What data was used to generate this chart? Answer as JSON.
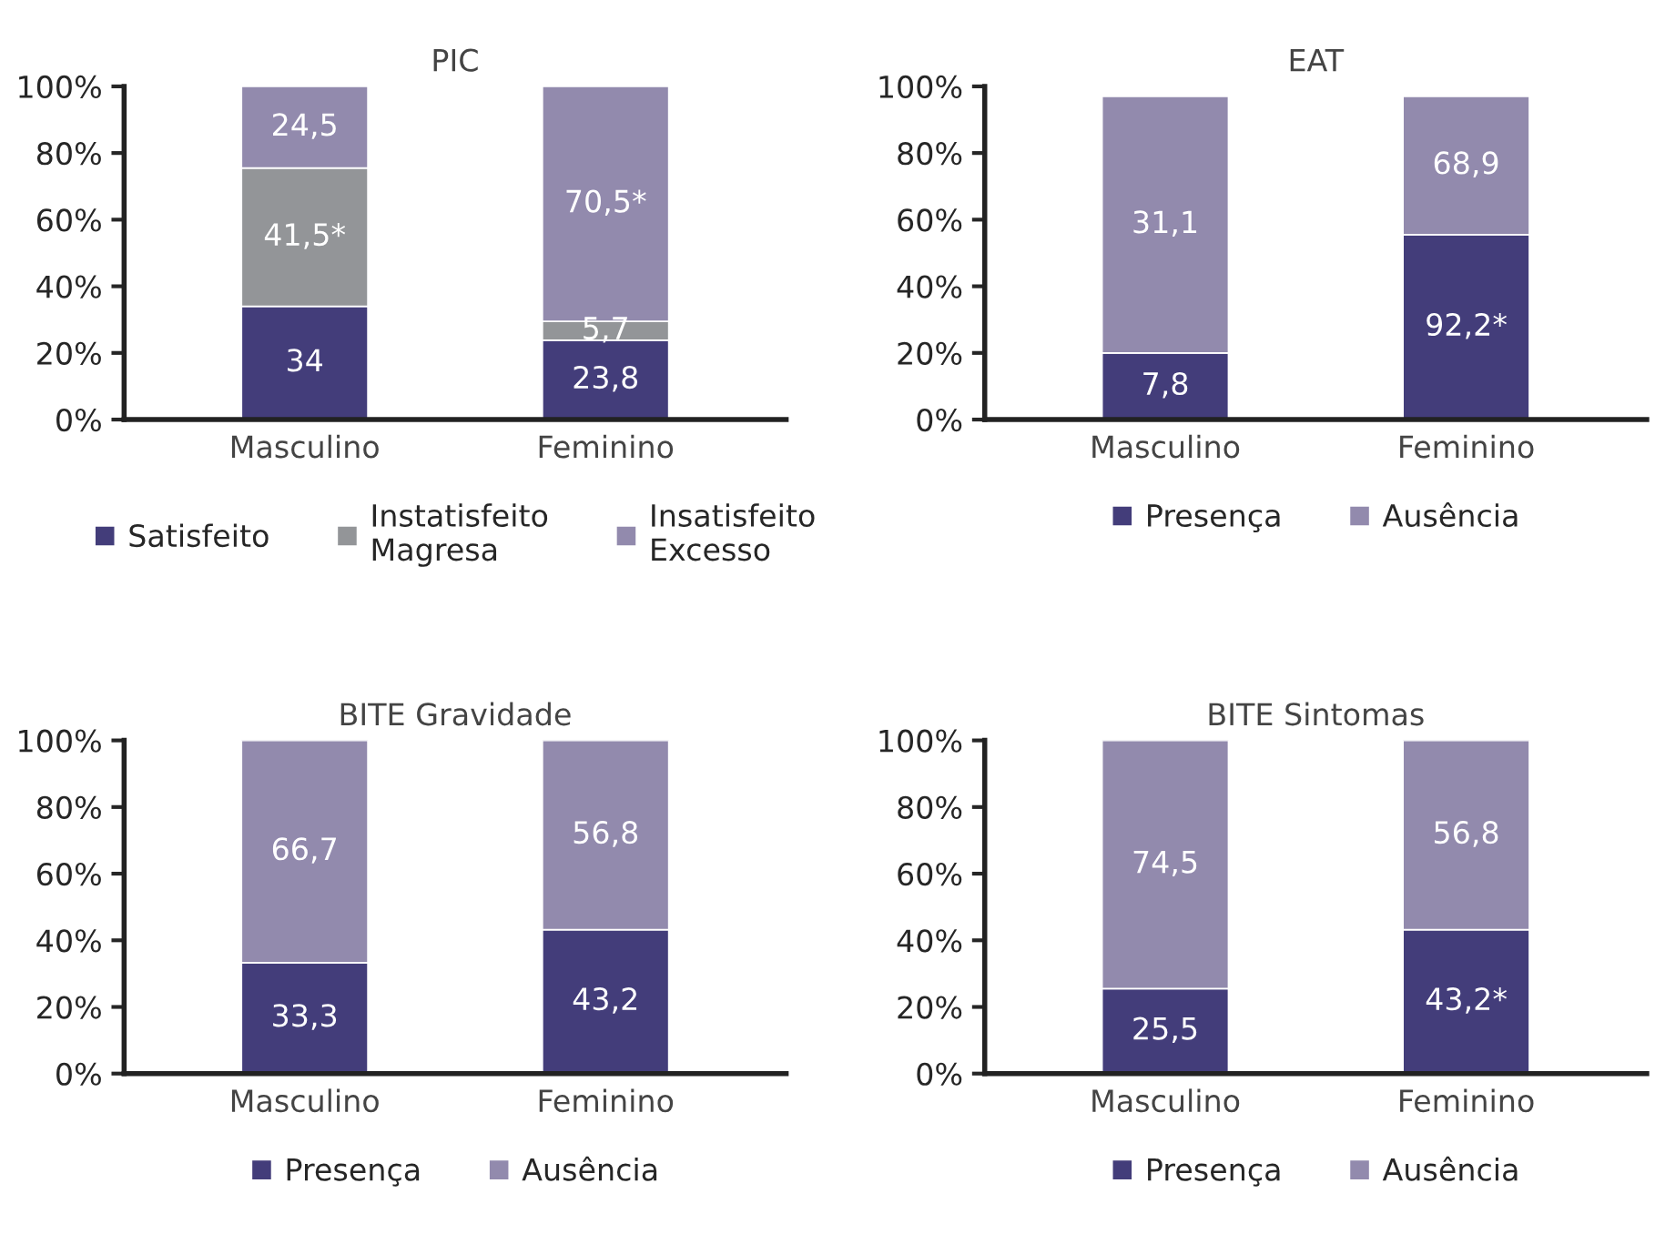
{
  "chart_data": [
    {
      "type": "bar",
      "title": "PIC",
      "stacked": true,
      "categories": [
        "Masculino",
        "Feminino"
      ],
      "ylim": [
        0,
        100
      ],
      "yticks": [
        {
          "value": 0,
          "label": "0%"
        },
        {
          "value": 20,
          "label": "20%"
        },
        {
          "value": 40,
          "label": "40%"
        },
        {
          "value": 60,
          "label": "60%"
        },
        {
          "value": 80,
          "label": "80%"
        },
        {
          "value": 100,
          "label": "100%"
        }
      ],
      "legend": "bottom",
      "grid": false,
      "series": [
        {
          "name": "Satisfeito",
          "color": "#433d7a",
          "values": [
            34,
            23.8
          ],
          "value_labels": [
            "34",
            "23,8"
          ]
        },
        {
          "name": "Instatisfeito\nMagresa",
          "color": "#939598",
          "values": [
            41.5,
            5.7
          ],
          "value_labels": [
            "41,5*",
            "5,7"
          ]
        },
        {
          "name": "Insatisfeito\nExcesso",
          "color": "#928aad",
          "values": [
            24.5,
            70.5
          ],
          "value_labels": [
            "24,5",
            "70,5*"
          ]
        }
      ]
    },
    {
      "type": "bar",
      "title": "EAT",
      "stacked": true,
      "categories": [
        "Masculino",
        "Feminino"
      ],
      "ylim": [
        0,
        100
      ],
      "yticks": [
        {
          "value": 0,
          "label": "0%"
        },
        {
          "value": 20,
          "label": "20%"
        },
        {
          "value": 40,
          "label": "40%"
        },
        {
          "value": 60,
          "label": "60%"
        },
        {
          "value": 80,
          "label": "80%"
        },
        {
          "value": 100,
          "label": "100%"
        }
      ],
      "legend": "bottom",
      "grid": false,
      "series": [
        {
          "name": "Presença",
          "color": "#433d7a",
          "values": [
            20,
            55.5
          ]
        },
        {
          "name": "Ausência",
          "color": "#928aad",
          "values": [
            77,
            41.5
          ]
        }
      ],
      "annotations": [
        "7,8",
        "92,2*",
        "31,1",
        "68,9"
      ]
    },
    {
      "type": "bar",
      "title": "BITE Gravidade",
      "stacked": true,
      "categories": [
        "Masculino",
        "Feminino"
      ],
      "ylim": [
        0,
        100
      ],
      "yticks": [
        {
          "value": 0,
          "label": "0%"
        },
        {
          "value": 20,
          "label": "20%"
        },
        {
          "value": 40,
          "label": "40%"
        },
        {
          "value": 60,
          "label": "60%"
        },
        {
          "value": 80,
          "label": "80%"
        },
        {
          "value": 100,
          "label": "100%"
        }
      ],
      "legend": "bottom",
      "grid": false,
      "series": [
        {
          "name": "Presença",
          "color": "#433d7a",
          "values": [
            33.3,
            43.2
          ],
          "value_labels": [
            "33,3",
            "43,2"
          ]
        },
        {
          "name": "Ausência",
          "color": "#928aad",
          "values": [
            66.7,
            56.8
          ],
          "value_labels": [
            "66,7",
            "56,8"
          ]
        }
      ]
    },
    {
      "type": "bar",
      "title": "BITE Sintomas",
      "stacked": true,
      "categories": [
        "Masculino",
        "Feminino"
      ],
      "ylim": [
        0,
        100
      ],
      "yticks": [
        {
          "value": 0,
          "label": "0%"
        },
        {
          "value": 20,
          "label": "20%"
        },
        {
          "value": 40,
          "label": "40%"
        },
        {
          "value": 60,
          "label": "60%"
        },
        {
          "value": 80,
          "label": "80%"
        },
        {
          "value": 100,
          "label": "100%"
        }
      ],
      "legend": "bottom",
      "grid": false,
      "series": [
        {
          "name": "Presença",
          "color": "#433d7a",
          "values": [
            25.5,
            43.2
          ],
          "value_labels": [
            "25,5",
            "43,2*"
          ]
        },
        {
          "name": "Ausência",
          "color": "#928aad",
          "values": [
            74.5,
            56.8
          ],
          "value_labels": [
            "74,5",
            "56,8"
          ]
        }
      ]
    }
  ]
}
